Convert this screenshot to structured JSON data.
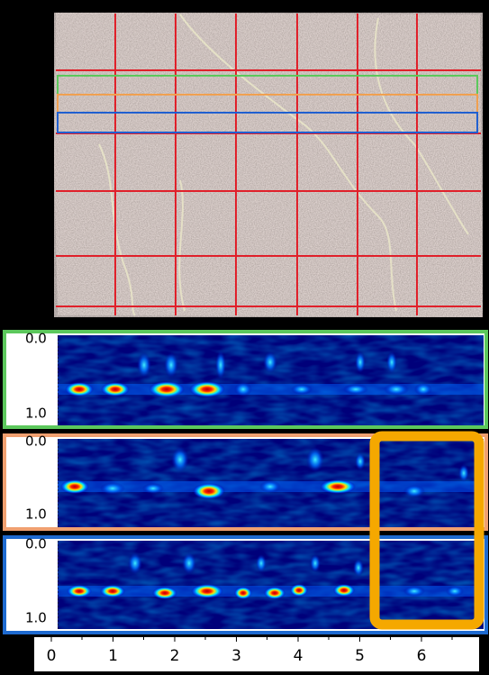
{
  "panels": [
    {
      "y_top": "0.0",
      "y_bottom": "1.0"
    },
    {
      "y_top": "0.0",
      "y_bottom": "1.0"
    },
    {
      "y_top": "0.0",
      "y_bottom": "1.0"
    }
  ],
  "x_axis": {
    "ticks": [
      "0",
      "1",
      "2",
      "3",
      "4",
      "5",
      "6"
    ]
  }
}
